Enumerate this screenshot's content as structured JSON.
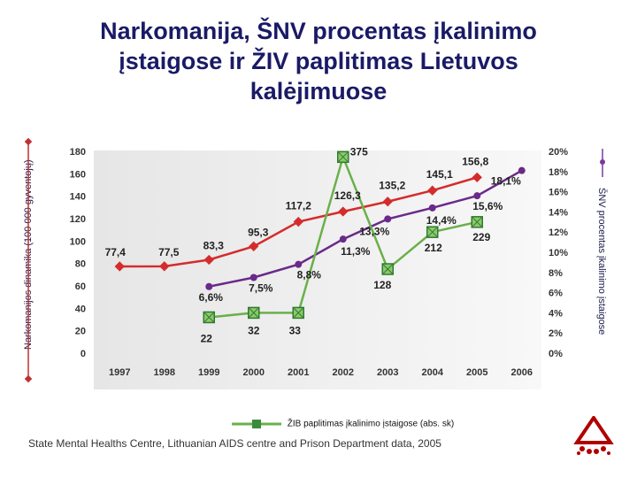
{
  "title_line1": "Narkomanija, ŠNV procentas įkalinimo",
  "title_line2": "įstaigose ir ŽIV paplitimas Lietuvos",
  "title_line3": "kalėjimuose",
  "chart_data": {
    "type": "line",
    "categories": [
      "1997",
      "1998",
      "1999",
      "2000",
      "2001",
      "2002",
      "2003",
      "2004",
      "2005",
      "2006"
    ],
    "ylim_left": [
      0,
      180
    ],
    "yticks_left": [
      "0",
      "20",
      "40",
      "60",
      "80",
      "100",
      "120",
      "140",
      "160",
      "180"
    ],
    "ylim_right": [
      0,
      20
    ],
    "yticks_right": [
      "0%",
      "2%",
      "4%",
      "6%",
      "8%",
      "10%",
      "12%",
      "14%",
      "16%",
      "18%",
      "20%"
    ],
    "ylabel_left": "Narkomanijos dinamika (100 000 gyventojų)",
    "ylabel_right": "ŠNV procentas įkalinimo įstaigose",
    "series": [
      {
        "name": "Narkomanijos dinamika",
        "axis": "left",
        "color": "#d42c2c",
        "marker": "diamond",
        "values": [
          77.4,
          77.5,
          83.3,
          95.3,
          117.2,
          126.3,
          135.2,
          145.1,
          156.8,
          null
        ],
        "labels": [
          "77,4",
          "77,5",
          "83,3",
          "95,3",
          "117,2",
          "126,3",
          "135,2",
          "145,1",
          "156,8",
          ""
        ]
      },
      {
        "name": "ŠNV procentas įkalinimo įstaigose",
        "axis": "right",
        "color": "#6a2a8a",
        "marker": "dot",
        "values": [
          null,
          null,
          6.6,
          7.5,
          8.8,
          11.3,
          13.3,
          14.4,
          15.6,
          18.1
        ],
        "labels": [
          "",
          "",
          "6,6%",
          "7,5%",
          "8,8%",
          "11,3%",
          "13,3%",
          "14,4%",
          "15,6%",
          "18,1%"
        ]
      },
      {
        "name": "ŽIB paplitimas įkalinimo įstaigose (abs. sk)",
        "axis": "left",
        "color": "#6ab04a",
        "marker": "square",
        "plot_values": [
          null,
          null,
          32,
          36,
          36,
          175,
          75,
          108,
          117,
          null
        ],
        "labels": [
          "",
          "",
          "22",
          "32",
          "33",
          "375",
          "128",
          "212",
          "229",
          ""
        ]
      }
    ],
    "legend_label": "ŽIB paplitimas įkalinimo įstaigose (abs. sk)"
  },
  "source": "State Mental Healths Centre, Lithuanian  AIDS centre and Prison Department data, 2005"
}
